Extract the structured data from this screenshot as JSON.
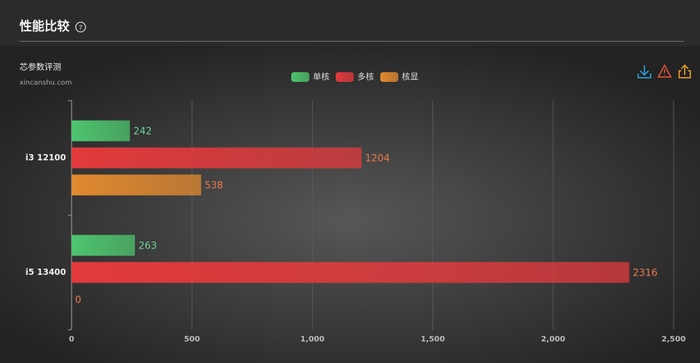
{
  "header": {
    "title": "性能比较"
  },
  "chart_data": {
    "type": "bar",
    "orientation": "horizontal",
    "title": "芯参数评测",
    "subtitle": "xincanshu.com",
    "categories": [
      "i3 12100",
      "i5 13400"
    ],
    "series": [
      {
        "name": "单核",
        "color": "#4ec56e",
        "values": [
          242,
          263
        ]
      },
      {
        "name": "多核",
        "color": "#e23a3c",
        "values": [
          1204,
          2316
        ]
      },
      {
        "name": "核显",
        "color": "#e28a30",
        "values": [
          538,
          0
        ]
      }
    ],
    "xlim": [
      0,
      2500
    ],
    "xticks": [
      0,
      500,
      {
        "value": 1000,
        "label": "1,000"
      },
      {
        "value": 1500,
        "label": "1,500"
      },
      {
        "value": 2000,
        "label": "2,000"
      },
      {
        "value": 2500,
        "label": "2,500"
      }
    ],
    "grid": true,
    "legend": "top"
  }
}
